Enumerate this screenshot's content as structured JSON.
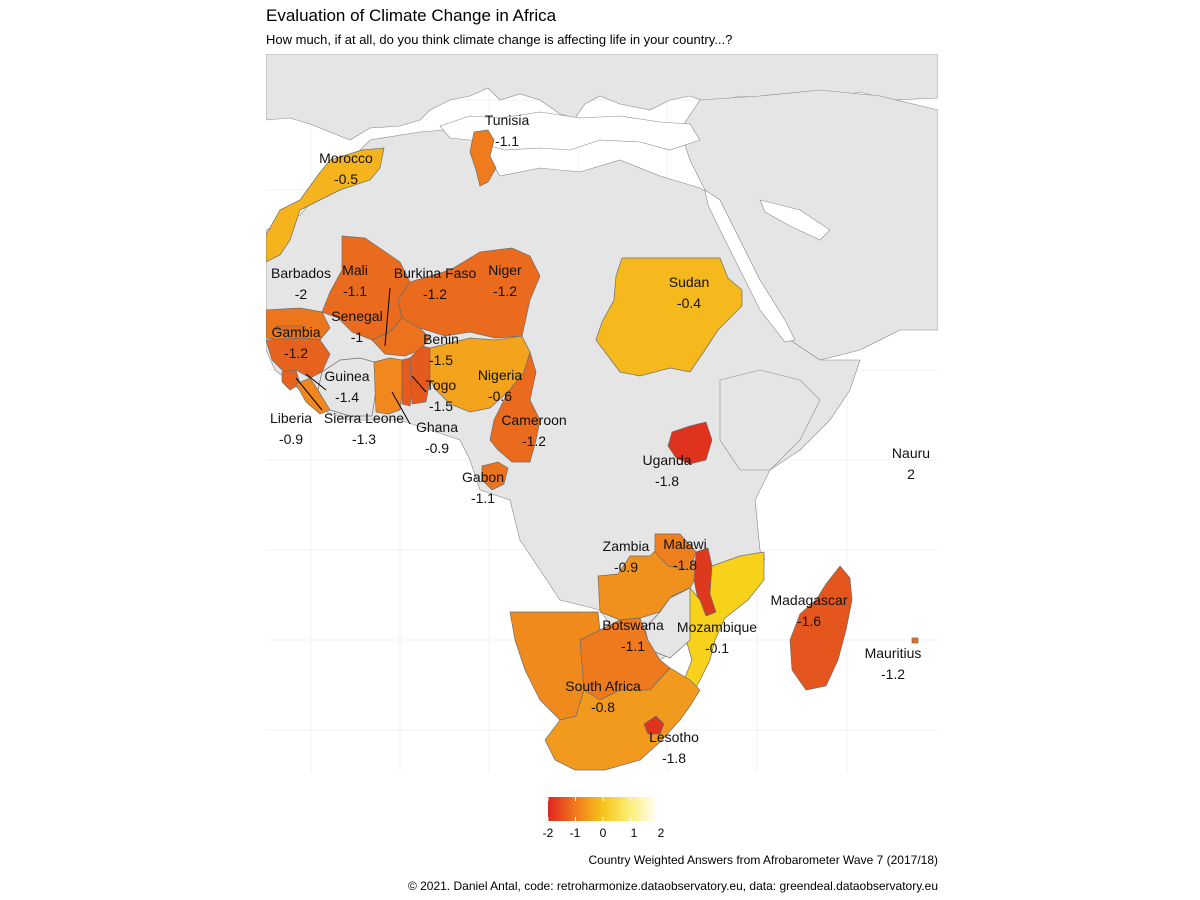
{
  "title": "Evaluation of Climate Change in Africa",
  "subtitle": "How much, if at all, do you think climate change is affecting life in your country...?",
  "legend": {
    "ticks": [
      "-2",
      "-1",
      "0",
      "1",
      "2"
    ],
    "range": [
      -2,
      2
    ]
  },
  "caption": {
    "line1": "Country Weighted Answers from Afrobarometer Wave 7 (2017/18)",
    "line2": "© 2021. Daniel Antal, code: retroharmonize.dataobservatory.eu, data: greendeal.dataobservatory.eu"
  },
  "colors": {
    "land": "#e5e5e5",
    "border": "#999999",
    "sea": "#ffffff"
  },
  "chart_data": {
    "type": "choropleth",
    "value_range": [
      -2,
      2
    ],
    "countries": [
      {
        "name": "Tunisia",
        "value": -1.1,
        "label": "-1.1"
      },
      {
        "name": "Morocco",
        "value": -0.5,
        "label": "-0.5"
      },
      {
        "name": "Barbados",
        "value": -2,
        "label": "-2"
      },
      {
        "name": "Mali",
        "value": -1.1,
        "label": "-1.1"
      },
      {
        "name": "Burkina Faso",
        "value": -1.2,
        "label": "-1.2"
      },
      {
        "name": "Niger",
        "value": -1.2,
        "label": "-1.2"
      },
      {
        "name": "Sudan",
        "value": -0.4,
        "label": "-0.4"
      },
      {
        "name": "Senegal",
        "value": -1,
        "label": "-1"
      },
      {
        "name": "Gambia",
        "value": -1.2,
        "label": "-1.2"
      },
      {
        "name": "Benin",
        "value": -1.5,
        "label": "-1.5"
      },
      {
        "name": "Guinea",
        "value": -1.4,
        "label": "-1.4"
      },
      {
        "name": "Togo",
        "value": -1.5,
        "label": "-1.5"
      },
      {
        "name": "Nigeria",
        "value": -0.6,
        "label": "-0.6"
      },
      {
        "name": "Liberia",
        "value": -0.9,
        "label": "-0.9"
      },
      {
        "name": "Sierra Leone",
        "value": -1.3,
        "label": "-1.3"
      },
      {
        "name": "Ghana",
        "value": -0.9,
        "label": "-0.9"
      },
      {
        "name": "Cameroon",
        "value": -1.2,
        "label": "-1.2"
      },
      {
        "name": "Uganda",
        "value": -1.8,
        "label": "-1.8"
      },
      {
        "name": "Nauru",
        "value": 2,
        "label": "2"
      },
      {
        "name": "Gabon",
        "value": -1.1,
        "label": "-1.1"
      },
      {
        "name": "Zambia",
        "value": -0.9,
        "label": "-0.9"
      },
      {
        "name": "Malawi",
        "value": -1.8,
        "label": "-1.8"
      },
      {
        "name": "Madagascar",
        "value": -1.6,
        "label": "-1.6"
      },
      {
        "name": "Botswana",
        "value": -1.1,
        "label": "-1.1"
      },
      {
        "name": "Mozambique",
        "value": -0.1,
        "label": "-0.1"
      },
      {
        "name": "Mauritius",
        "value": -1.2,
        "label": "-1.2"
      },
      {
        "name": "South Africa",
        "value": -0.8,
        "label": "-0.8"
      },
      {
        "name": "Lesotho",
        "value": -1.8,
        "label": "-1.8"
      }
    ]
  }
}
